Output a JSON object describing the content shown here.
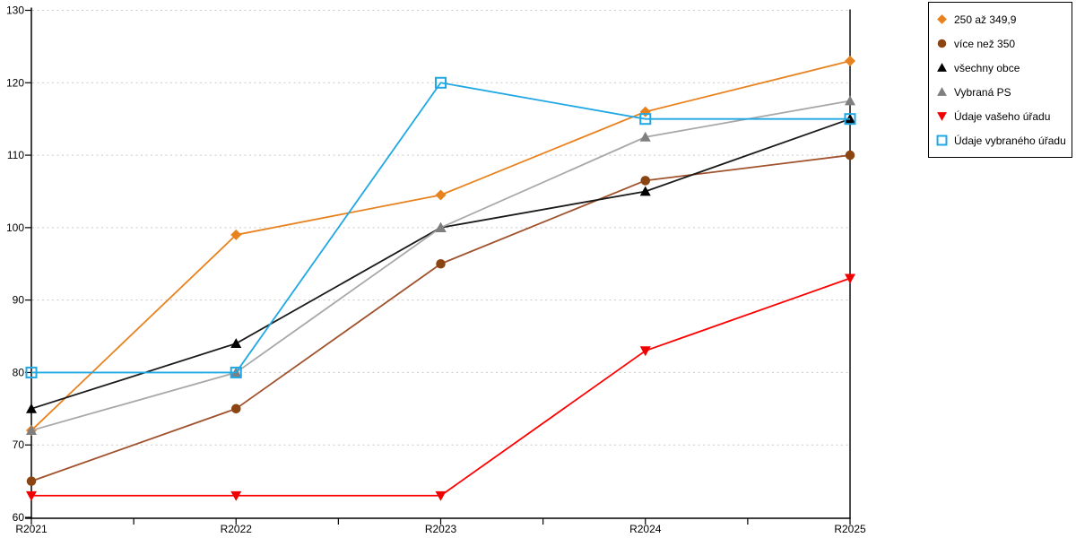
{
  "chart_data": {
    "type": "line",
    "title": "",
    "xlabel": "",
    "ylabel": "",
    "categories": [
      "R2021",
      "R2022",
      "R2023",
      "R2024",
      "R2025"
    ],
    "ylim": [
      60,
      130
    ],
    "yticks": [
      60,
      70,
      80,
      90,
      100,
      110,
      120,
      130
    ],
    "grid": "horizontal dotted light-gray",
    "legend_position": "top-right outside plot",
    "series": [
      {
        "name": "250 až 349,9",
        "marker": "diamond",
        "line_color": "#E8821E",
        "marker_color": "#E8821E",
        "values": [
          72,
          99,
          104.5,
          116,
          123
        ]
      },
      {
        "name": "více než 350",
        "marker": "circle",
        "line_color": "#A0522D",
        "marker_color": "#8B4513",
        "values": [
          65,
          75,
          95,
          106.5,
          110
        ]
      },
      {
        "name": "všechny obce",
        "marker": "triangle-up",
        "line_color": "#1A1A1A",
        "marker_color": "#000000",
        "values": [
          75,
          84,
          100,
          105,
          115
        ]
      },
      {
        "name": "Vybraná PS",
        "marker": "triangle-up",
        "line_color": "#A8A8A8",
        "marker_color": "#7F7F7F",
        "values": [
          72,
          80,
          100,
          112.5,
          117.5
        ]
      },
      {
        "name": "Údaje vašeho úřadu",
        "marker": "triangle-down",
        "line_color": "#FF0000",
        "marker_color": "#F00000",
        "values": [
          63,
          63,
          63,
          83,
          93
        ]
      },
      {
        "name": "Údaje vybraného úřadu",
        "marker": "square-open",
        "line_color": "#1FA8E3",
        "marker_color": "#1FA8E3",
        "values": [
          80,
          80,
          120,
          115,
          115
        ]
      }
    ]
  },
  "colors": {
    "axis": "#000000",
    "gridline": "#C9C9C9",
    "background": "#FFFFFF",
    "legend_border": "#000000",
    "tick_label": "#000000"
  }
}
